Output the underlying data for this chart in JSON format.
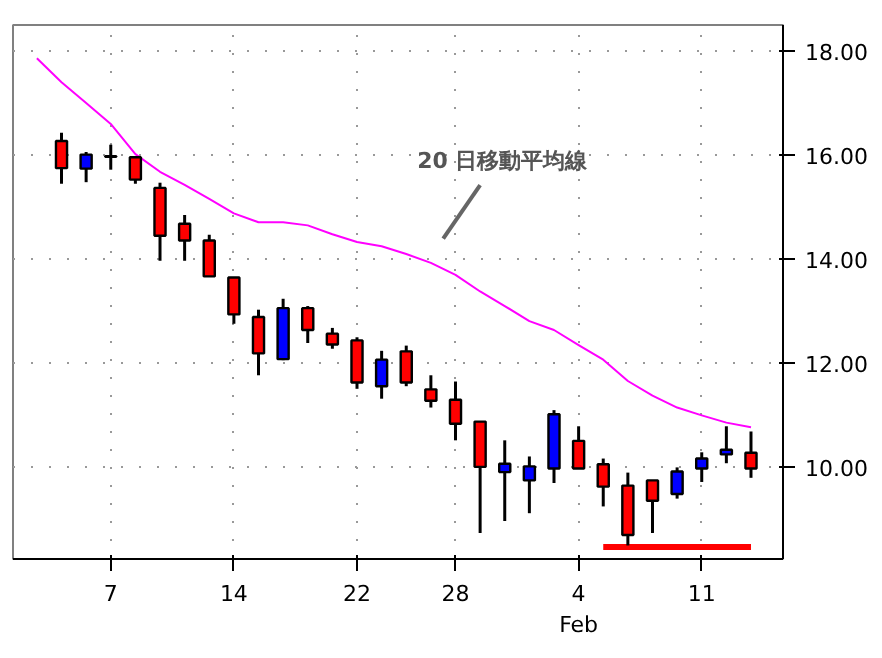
{
  "chart_data": {
    "type": "candlestick",
    "categories": [
      null,
      null,
      null,
      "7",
      null,
      null,
      null,
      null,
      "14",
      null,
      null,
      null,
      null,
      "22",
      null,
      null,
      null,
      "28",
      null,
      null,
      null,
      null,
      "4\nFeb",
      null,
      null,
      null,
      null,
      "11",
      null,
      null
    ],
    "ohlc": [
      null,
      [
        16.27,
        16.43,
        15.45,
        15.75
      ],
      [
        15.74,
        16.06,
        15.48,
        16.01
      ],
      [
        15.97,
        16.2,
        15.72,
        15.98
      ],
      [
        15.96,
        15.97,
        15.45,
        15.53
      ],
      [
        15.37,
        15.47,
        13.97,
        14.45
      ],
      [
        14.68,
        14.85,
        13.97,
        14.36
      ],
      [
        14.36,
        14.47,
        13.67,
        13.67
      ],
      [
        13.65,
        13.65,
        12.76,
        12.94
      ],
      [
        12.89,
        13.03,
        11.77,
        12.19
      ],
      [
        12.08,
        13.24,
        12.06,
        13.06
      ],
      [
        13.06,
        13.1,
        12.39,
        12.64
      ],
      [
        12.57,
        12.68,
        12.28,
        12.36
      ],
      [
        12.44,
        12.5,
        11.51,
        11.63
      ],
      [
        11.56,
        12.24,
        11.32,
        12.07
      ],
      [
        12.23,
        12.34,
        11.56,
        11.63
      ],
      [
        11.5,
        11.77,
        11.15,
        11.28
      ],
      [
        11.3,
        11.65,
        10.52,
        10.84
      ],
      [
        10.88,
        10.88,
        8.74,
        10.01
      ],
      [
        9.91,
        10.52,
        8.97,
        10.07
      ],
      [
        9.75,
        10.21,
        9.12,
        10.02
      ],
      [
        9.98,
        11.1,
        9.7,
        11.02
      ],
      [
        10.51,
        10.79,
        9.98,
        9.98
      ],
      [
        10.06,
        10.17,
        9.25,
        9.63
      ],
      [
        9.65,
        9.9,
        8.5,
        8.7
      ],
      [
        9.75,
        9.75,
        8.74,
        9.36
      ],
      [
        9.49,
        10.0,
        9.4,
        9.92
      ],
      [
        9.98,
        10.29,
        9.72,
        10.17
      ],
      [
        10.25,
        10.79,
        10.08,
        10.34
      ],
      [
        10.28,
        10.69,
        9.8,
        9.98
      ]
    ],
    "colors": [
      null,
      "#ff0000",
      "#0000ff",
      "#000000",
      "#ff0000",
      "#ff0000",
      "#ff0000",
      "#ff0000",
      "#ff0000",
      "#ff0000",
      "#0000ff",
      "#ff0000",
      "#ff0000",
      "#ff0000",
      "#0000ff",
      "#ff0000",
      "#ff0000",
      "#ff0000",
      "#ff0000",
      "#0000ff",
      "#0000ff",
      "#0000ff",
      "#ff0000",
      "#ff0000",
      "#ff0000",
      "#ff0000",
      "#0000ff",
      "#0000ff",
      "#0000ff",
      "#ff0000"
    ],
    "series": [
      {
        "type": "line",
        "color": "#ff00ff",
        "values": [
          17.86,
          17.4,
          17.0,
          16.6,
          16.02,
          15.68,
          15.43,
          15.16,
          14.88,
          14.71,
          14.71,
          14.65,
          14.48,
          14.33,
          14.25,
          14.1,
          13.93,
          13.7,
          13.38,
          13.1,
          12.81,
          12.64,
          12.35,
          12.07,
          11.66,
          11.38,
          11.15,
          11.0,
          10.86,
          10.77
        ]
      },
      {
        "type": "line",
        "color": "#ff0000",
        "values": [
          null,
          null,
          null,
          null,
          null,
          null,
          null,
          null,
          null,
          null,
          null,
          null,
          null,
          null,
          null,
          null,
          null,
          null,
          null,
          null,
          null,
          null,
          null,
          8.47,
          8.47,
          8.47,
          8.47,
          8.47,
          8.47,
          8.47
        ]
      }
    ],
    "annotations": [
      "20 日移動平均線"
    ],
    "ylim": [
      8.24,
      18.5
    ],
    "yticks": [
      {
        "value": 10,
        "label": "10.00"
      },
      {
        "value": 12,
        "label": "12.00"
      },
      {
        "value": 14,
        "label": "14.00"
      },
      {
        "value": 16,
        "label": "16.00"
      },
      {
        "value": 18,
        "label": "18.00"
      }
    ],
    "grid": true
  }
}
